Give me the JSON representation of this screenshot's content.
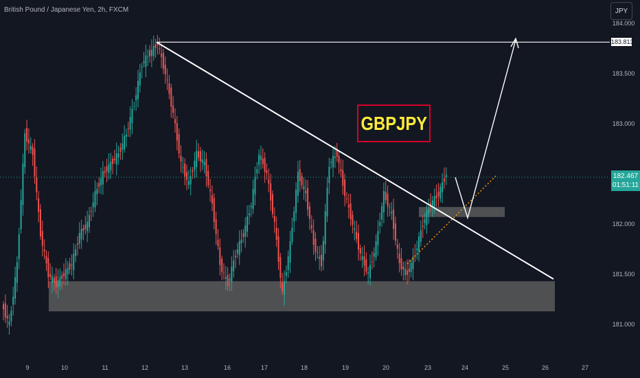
{
  "header": {
    "symbol_title": "British Pound / Japanese Yen, 2h, FXCM"
  },
  "currency_badge": "JPY",
  "price_tag": {
    "price": "182.467",
    "countdown": "01:51:11"
  },
  "target_tag": "183.813",
  "annotation_label": "GBPJPY",
  "colors": {
    "background": "#131722",
    "up": "#26a69a",
    "down": "#ef5350",
    "zone": "#5d5d5d",
    "label_border": "#d6002a",
    "label_text": "#ffeb3b",
    "lines": "#ffffff",
    "support_dotted": "#ff9800"
  },
  "chart_data": {
    "type": "candlestick",
    "title": "British Pound / Japanese Yen, 2h, FXCM",
    "y_axis": {
      "ticks": [
        184.0,
        183.5,
        183.0,
        182.5,
        182.0,
        181.5,
        181.0
      ],
      "ylim": [
        180.8,
        184.15
      ]
    },
    "x_axis": {
      "ticks": [
        "9",
        "10",
        "11",
        "12",
        "13",
        "16",
        "17",
        "18",
        "19",
        "20",
        "23",
        "24",
        "25",
        "26",
        "27"
      ]
    },
    "current_price": 182.467,
    "target_price": 183.813,
    "high_price": 183.813,
    "demand_zone": {
      "from": 181.13,
      "to": 181.43
    },
    "small_zone": {
      "from": 182.07,
      "to": 182.17
    },
    "projection": [
      {
        "x": 24.1,
        "y": 182.06
      },
      {
        "x": 25.3,
        "y": 183.81
      }
    ],
    "price_series": [
      181.2,
      181.0,
      181.6,
      182.9,
      182.7,
      181.9,
      181.5,
      181.4,
      181.5,
      181.6,
      181.9,
      182.0,
      182.3,
      182.5,
      182.6,
      182.7,
      182.9,
      183.2,
      183.6,
      183.7,
      183.8,
      183.5,
      183.1,
      182.6,
      182.4,
      182.7,
      182.6,
      182.2,
      181.6,
      181.4,
      181.7,
      181.9,
      182.2,
      182.7,
      182.5,
      182.0,
      181.3,
      181.8,
      182.5,
      182.3,
      181.8,
      181.6,
      182.6,
      182.7,
      182.3,
      182.0,
      181.7,
      181.5,
      181.8,
      182.3,
      182.1,
      181.6,
      181.5,
      181.7,
      182.0,
      182.2,
      182.3,
      182.5
    ]
  }
}
